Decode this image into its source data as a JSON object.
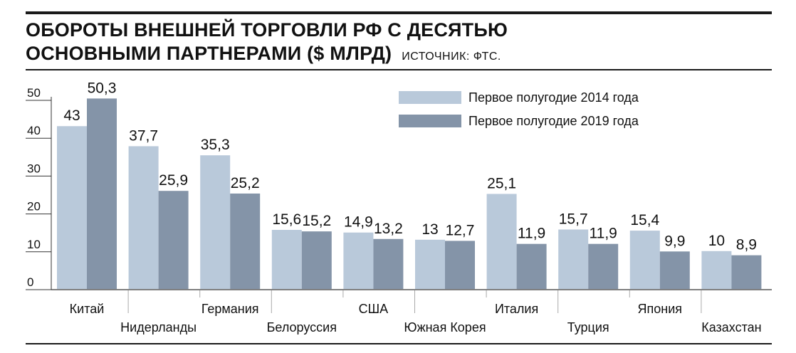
{
  "header": {
    "title_line1": "ОБОРОТЫ ВНЕШНЕЙ ТОРГОВЛИ РФ С ДЕСЯТЬЮ",
    "title_line2": "ОСНОВНЫМИ ПАРТНЕРАМИ ($ МЛРД)",
    "source": "ИСТОЧНИК: ФТС."
  },
  "colors": {
    "series_2014": "#b9c9da",
    "series_2019": "#8494a8",
    "text": "#111111",
    "axis": "#333333"
  },
  "chart_data": {
    "type": "bar",
    "title": "ОБОРОТЫ ВНЕШНЕЙ ТОРГОВЛИ РФ С ДЕСЯТЬЮ ОСНОВНЫМИ ПАРТНЕРАМИ ($ МЛРД)",
    "categories": [
      "Китай",
      "Нидерланды",
      "Германия",
      "Белоруссия",
      "США",
      "Южная Корея",
      "Италия",
      "Турция",
      "Япония",
      "Казахстан"
    ],
    "series": [
      {
        "name": "Первое полугодие 2014 года",
        "values": [
          43,
          37.7,
          35.3,
          15.6,
          14.9,
          13,
          25.1,
          15.7,
          15.4,
          10
        ],
        "labels": [
          "43",
          "37,7",
          "35,3",
          "15,6",
          "14,9",
          "13",
          "25,1",
          "15,7",
          "15,4",
          "10"
        ]
      },
      {
        "name": "Первое полугодие 2019 года",
        "values": [
          50.3,
          25.9,
          25.2,
          15.2,
          13.2,
          12.7,
          11.9,
          11.9,
          9.9,
          8.9
        ],
        "labels": [
          "50,3",
          "25,9",
          "25,2",
          "15,2",
          "13,2",
          "12,7",
          "11,9",
          "11,9",
          "9,9",
          "8,9"
        ]
      }
    ],
    "yticks": [
      0,
      10,
      20,
      30,
      40,
      50
    ],
    "ylim": [
      0,
      50
    ],
    "grid": false,
    "legend": "top-right",
    "xlabel": "",
    "ylabel": ""
  }
}
